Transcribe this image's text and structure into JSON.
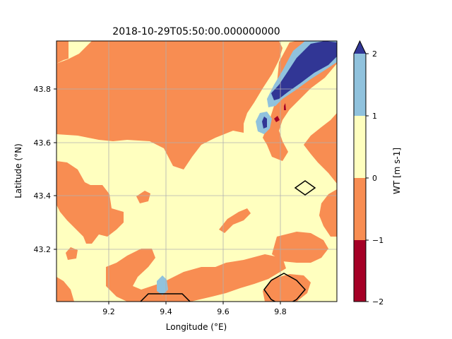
{
  "chart_data": {
    "type": "heatmap",
    "title": "2018-10-29T05:50:00.000000000",
    "xlabel": "Longitude (°E)",
    "ylabel": "Latitude (°N)",
    "xlim": [
      9.0,
      10.0
    ],
    "ylim": [
      43.0,
      43.98
    ],
    "x_ticks": [
      "9.2",
      "9.4",
      "9.6",
      "9.8"
    ],
    "y_ticks": [
      "43.2",
      "43.4",
      "43.6",
      "43.8"
    ],
    "grid": true,
    "colorbar": {
      "label": "WT [m s-1]",
      "ticks": [
        "−2",
        "−1",
        "0",
        "1",
        "2"
      ],
      "levels": [
        -2,
        -1,
        0,
        1,
        2
      ],
      "colors": [
        "#a50026",
        "#f88d52",
        "#ffffbf",
        "#90c2dd",
        "#313695"
      ],
      "extend": "max"
    },
    "legend_placement": "right"
  }
}
